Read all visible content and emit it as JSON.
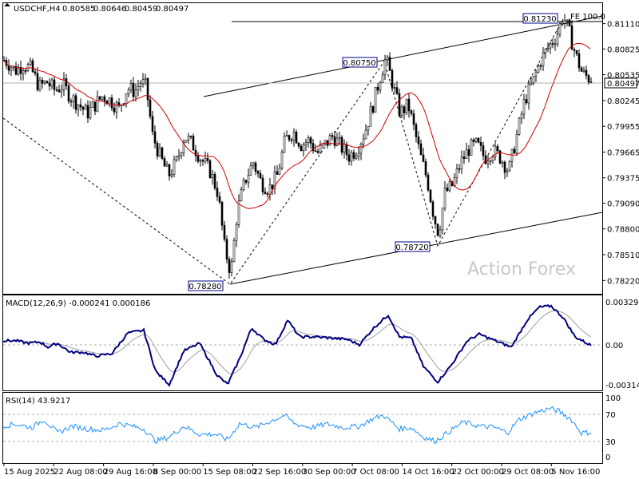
{
  "chart_data": {
    "type": "candlestick",
    "title": "USDCHF,H4",
    "ohlc_header": [
      "0.80585",
      "0.80646",
      "0.80459",
      "0.80497"
    ],
    "watermark": "Action Forex",
    "price_axis": {
      "ticks": [
        "0.81110",
        "0.80825",
        "0.80535",
        "0.80245",
        "0.79955",
        "0.79665",
        "0.79375",
        "0.79090",
        "0.78800",
        "0.78510",
        "0.78220"
      ],
      "current_price": "0.80497",
      "range": [
        0.7807,
        0.8134
      ]
    },
    "time_axis": {
      "labels": [
        "15 Aug 2025",
        "22 Aug 08:00",
        "29 Aug 16:00",
        "8 Sep 00:00",
        "15 Sep 08:00",
        "22 Sep 16:00",
        "30 Sep 00:00",
        "7 Oct 08:00",
        "14 Oct 16:00",
        "22 Oct 00:00",
        "29 Oct 08:00",
        "5 Nov 16:00"
      ]
    },
    "price_labels": [
      "0.81230",
      "0.80750",
      "0.78720",
      "0.78280"
    ],
    "fe_label": "FE 100.0",
    "price_waypoints": [
      [
        0,
        0.8072
      ],
      [
        8,
        0.8068
      ],
      [
        18,
        0.8058
      ],
      [
        28,
        0.8065
      ],
      [
        38,
        0.806
      ],
      [
        48,
        0.804
      ],
      [
        58,
        0.8045
      ],
      [
        68,
        0.8036
      ],
      [
        78,
        0.8042
      ],
      [
        88,
        0.8028
      ],
      [
        98,
        0.802
      ],
      [
        108,
        0.801
      ],
      [
        118,
        0.802
      ],
      [
        128,
        0.803
      ],
      [
        138,
        0.8024
      ],
      [
        148,
        0.8015
      ],
      [
        158,
        0.8038
      ],
      [
        168,
        0.8035
      ],
      [
        175,
        0.8045
      ],
      [
        182,
        0.804
      ],
      [
        190,
        0.7985
      ],
      [
        200,
        0.796
      ],
      [
        210,
        0.794
      ],
      [
        220,
        0.7955
      ],
      [
        230,
        0.7985
      ],
      [
        240,
        0.7975
      ],
      [
        250,
        0.796
      ],
      [
        262,
        0.7945
      ],
      [
        272,
        0.792
      ],
      [
        280,
        0.786
      ],
      [
        288,
        0.783
      ],
      [
        296,
        0.79
      ],
      [
        306,
        0.7935
      ],
      [
        316,
        0.7955
      ],
      [
        326,
        0.7932
      ],
      [
        336,
        0.7925
      ],
      [
        346,
        0.794
      ],
      [
        356,
        0.798
      ],
      [
        366,
        0.799
      ],
      [
        376,
        0.7975
      ],
      [
        386,
        0.798
      ],
      [
        396,
        0.7965
      ],
      [
        406,
        0.7975
      ],
      [
        416,
        0.7985
      ],
      [
        426,
        0.7972
      ],
      [
        436,
        0.7962
      ],
      [
        446,
        0.797
      ],
      [
        456,
        0.799
      ],
      [
        466,
        0.802
      ],
      [
        476,
        0.8055
      ],
      [
        482,
        0.8072
      ],
      [
        490,
        0.8045
      ],
      [
        500,
        0.801
      ],
      [
        510,
        0.802
      ],
      [
        518,
        0.799
      ],
      [
        526,
        0.796
      ],
      [
        534,
        0.7935
      ],
      [
        542,
        0.7895
      ],
      [
        548,
        0.7875
      ],
      [
        556,
        0.792
      ],
      [
        566,
        0.793
      ],
      [
        576,
        0.7955
      ],
      [
        586,
        0.797
      ],
      [
        596,
        0.7975
      ],
      [
        606,
        0.796
      ],
      [
        616,
        0.7968
      ],
      [
        626,
        0.796
      ],
      [
        636,
        0.7945
      ],
      [
        646,
        0.7985
      ],
      [
        656,
        0.8025
      ],
      [
        666,
        0.8045
      ],
      [
        676,
        0.807
      ],
      [
        686,
        0.8085
      ],
      [
        696,
        0.8098
      ],
      [
        704,
        0.812
      ],
      [
        712,
        0.81
      ],
      [
        720,
        0.8075
      ],
      [
        728,
        0.8055
      ],
      [
        736,
        0.805
      ],
      [
        741,
        0.805
      ]
    ],
    "macd": {
      "label": "MACD(12,26,9) -0.000241 0.000186",
      "ticks": [
        "0.003293",
        "0.00",
        "-0.003142"
      ],
      "range": [
        -0.0036,
        0.0036
      ],
      "waypoints": [
        [
          0,
          0.0002
        ],
        [
          20,
          0.0002
        ],
        [
          35,
          0.0
        ],
        [
          50,
          0.0001
        ],
        [
          60,
          -0.0003
        ],
        [
          72,
          0.0
        ],
        [
          88,
          -0.0007
        ],
        [
          105,
          -0.0007
        ],
        [
          120,
          -0.001
        ],
        [
          140,
          -0.0008
        ],
        [
          160,
          0.0008
        ],
        [
          180,
          0.001
        ],
        [
          195,
          -0.0022
        ],
        [
          212,
          -0.0032
        ],
        [
          230,
          -0.0006
        ],
        [
          250,
          0.0
        ],
        [
          272,
          -0.0025
        ],
        [
          285,
          -0.0032
        ],
        [
          300,
          -0.0012
        ],
        [
          315,
          0.0012
        ],
        [
          330,
          0.0003
        ],
        [
          345,
          -0.0001
        ],
        [
          360,
          0.0018
        ],
        [
          375,
          0.0005
        ],
        [
          395,
          0.0005
        ],
        [
          415,
          0.0004
        ],
        [
          435,
          0.0003
        ],
        [
          450,
          -0.0001
        ],
        [
          468,
          0.0012
        ],
        [
          486,
          0.0022
        ],
        [
          500,
          0.0005
        ],
        [
          515,
          0.0004
        ],
        [
          530,
          -0.0018
        ],
        [
          548,
          -0.003
        ],
        [
          565,
          -0.0017
        ],
        [
          585,
          0.0002
        ],
        [
          600,
          0.0007
        ],
        [
          620,
          0.0002
        ],
        [
          640,
          -0.0003
        ],
        [
          660,
          0.0018
        ],
        [
          675,
          0.0028
        ],
        [
          690,
          0.0029
        ],
        [
          705,
          0.002
        ],
        [
          720,
          0.0005
        ],
        [
          741,
          -0.0002
        ]
      ]
    },
    "rsi": {
      "label": "RSI(14) 43.9217",
      "ticks": [
        "100",
        "70",
        "30",
        "0"
      ],
      "range": [
        0,
        100
      ],
      "waypoints": [
        [
          0,
          52
        ],
        [
          20,
          55
        ],
        [
          40,
          50
        ],
        [
          55,
          62
        ],
        [
          72,
          42
        ],
        [
          90,
          52
        ],
        [
          110,
          48
        ],
        [
          130,
          46
        ],
        [
          150,
          56
        ],
        [
          180,
          48
        ],
        [
          195,
          30
        ],
        [
          212,
          36
        ],
        [
          230,
          52
        ],
        [
          250,
          40
        ],
        [
          270,
          40
        ],
        [
          285,
          32
        ],
        [
          300,
          56
        ],
        [
          320,
          50
        ],
        [
          340,
          60
        ],
        [
          356,
          68
        ],
        [
          370,
          55
        ],
        [
          390,
          50
        ],
        [
          410,
          55
        ],
        [
          430,
          50
        ],
        [
          450,
          52
        ],
        [
          465,
          62
        ],
        [
          480,
          68
        ],
        [
          500,
          48
        ],
        [
          515,
          50
        ],
        [
          530,
          36
        ],
        [
          545,
          30
        ],
        [
          560,
          42
        ],
        [
          580,
          58
        ],
        [
          600,
          52
        ],
        [
          620,
          50
        ],
        [
          635,
          42
        ],
        [
          650,
          62
        ],
        [
          670,
          72
        ],
        [
          688,
          78
        ],
        [
          700,
          74
        ],
        [
          715,
          62
        ],
        [
          728,
          42
        ],
        [
          741,
          43
        ]
      ]
    }
  }
}
